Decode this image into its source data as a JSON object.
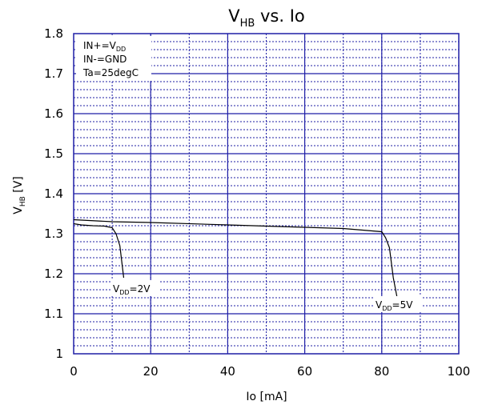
{
  "chart_data": {
    "type": "line",
    "title_main": "V",
    "title_sub": "HB",
    "title_rest": " vs. Io",
    "xlabel": "Io [mA]",
    "ylabel_main": "V",
    "ylabel_sub": "HB",
    "ylabel_rest": " [V]",
    "xlim": [
      0,
      100
    ],
    "ylim": [
      1.0,
      1.8
    ],
    "xticks": [
      "0",
      "20",
      "40",
      "60",
      "80",
      "100"
    ],
    "yticks": [
      "1",
      "1.1",
      "1.2",
      "1.3",
      "1.4",
      "1.5",
      "1.6",
      "1.7",
      "1.8"
    ],
    "grid": true,
    "conditions": [
      {
        "main": "IN+=V",
        "sub": "DD"
      },
      {
        "main": "IN-=GND",
        "sub": ""
      },
      {
        "main": "Ta=25degC",
        "sub": ""
      }
    ],
    "series": [
      {
        "name_main": "V",
        "name_sub": "DD",
        "name_rest": "=2V",
        "x": [
          0,
          2,
          5,
          8,
          10,
          11,
          12,
          13
        ],
        "y": [
          1.325,
          1.322,
          1.32,
          1.319,
          1.315,
          1.3,
          1.27,
          1.19
        ]
      },
      {
        "name_main": "V",
        "name_sub": "DD",
        "name_rest": "=5V",
        "x": [
          0,
          10,
          20,
          40,
          60,
          70,
          80,
          81,
          82,
          83,
          84
        ],
        "y": [
          1.335,
          1.33,
          1.328,
          1.322,
          1.316,
          1.313,
          1.305,
          1.29,
          1.265,
          1.19,
          1.14
        ]
      }
    ],
    "colors": {
      "grid": "#1f1fa6",
      "line": "#000000",
      "frame": "#1f1fa6"
    }
  }
}
